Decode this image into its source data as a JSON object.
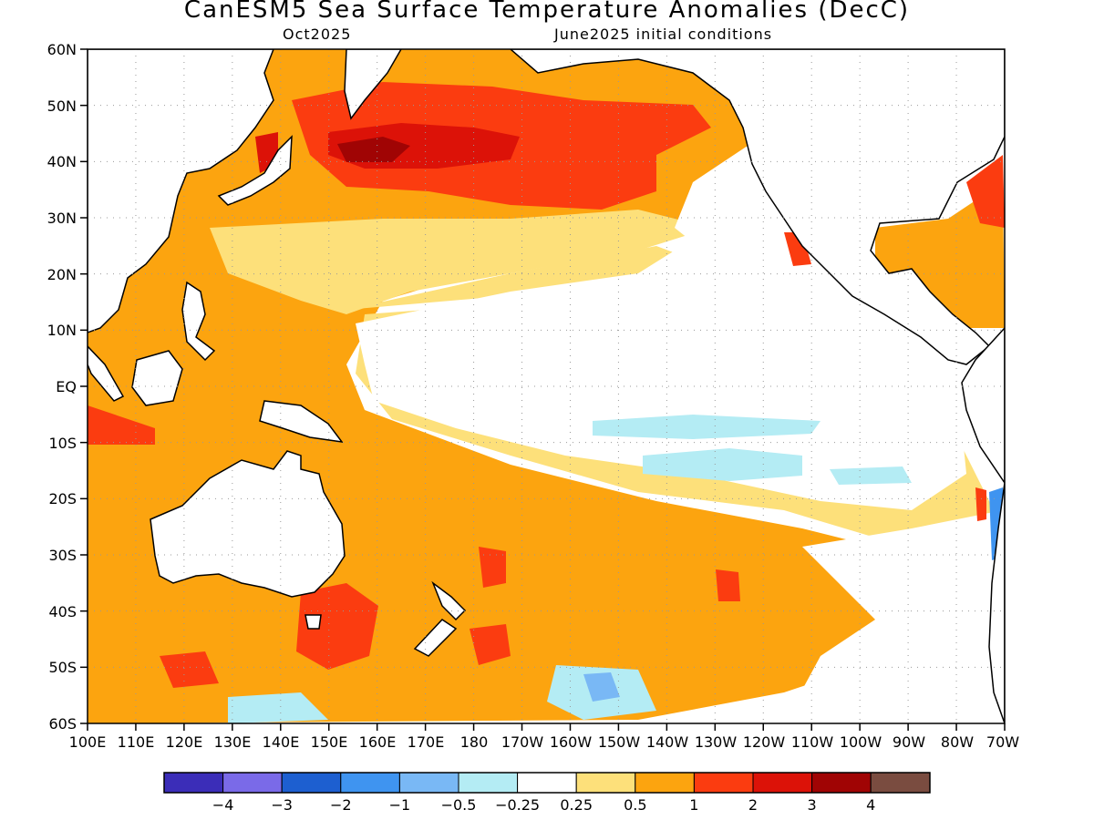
{
  "title": "CanESM5 Sea Surface Temperature Anomalies (DecC)",
  "valid_month": "Oct2025",
  "init_note": "June2025 initial conditions",
  "lat_labels": [
    "60N",
    "50N",
    "40N",
    "30N",
    "20N",
    "10N",
    "EQ",
    "10S",
    "20S",
    "30S",
    "40S",
    "50S",
    "60S"
  ],
  "lon_labels": [
    "100E",
    "110E",
    "120E",
    "130E",
    "140E",
    "150E",
    "160E",
    "170E",
    "180",
    "170W",
    "160W",
    "150W",
    "140W",
    "130W",
    "120W",
    "110W",
    "100W",
    "90W",
    "80W",
    "70W"
  ],
  "legend": {
    "colors": [
      "#3b2db8",
      "#7a6ae8",
      "#1d5fd0",
      "#3f94f0",
      "#79b8f5",
      "#b4ecf4",
      "#ffffff",
      "#fde07a",
      "#fca40f",
      "#fb3c10",
      "#dc1208",
      "#a00404",
      "#7a4c40"
    ],
    "labels": [
      "−4",
      "−3",
      "−2",
      "−1",
      "−0.5",
      "−0.25",
      "0.25",
      "0.5",
      "1",
      "2",
      "3",
      "4"
    ]
  }
}
